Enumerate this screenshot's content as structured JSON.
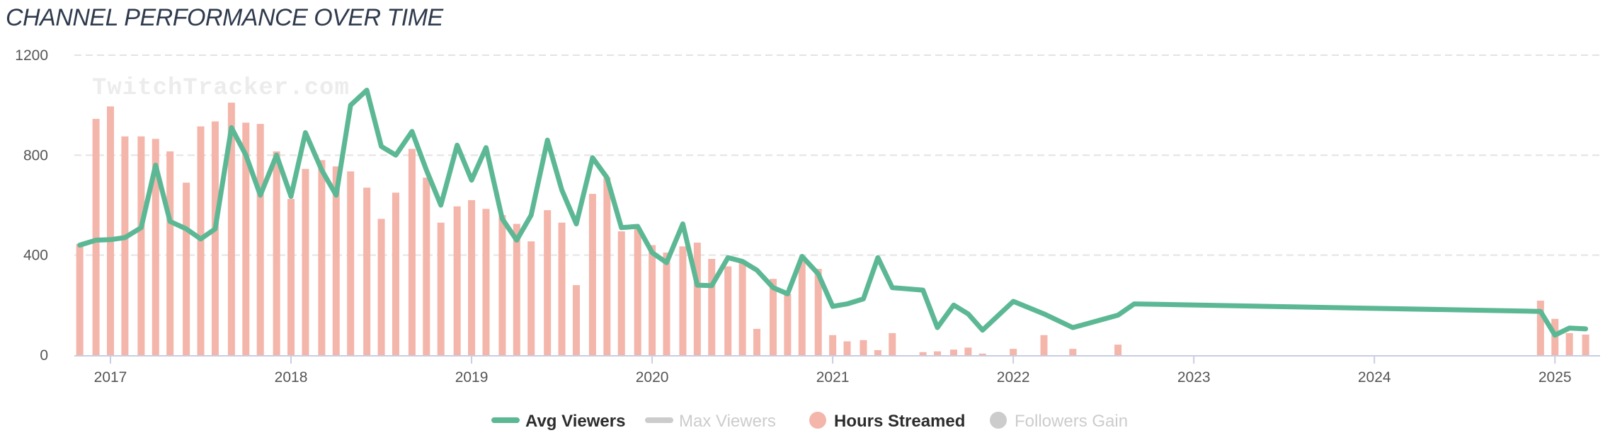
{
  "chart_data": {
    "type": "bar+line",
    "title": "CHANNEL PERFORMANCE OVER TIME",
    "watermark": "TwitchTracker.com",
    "ylim": [
      0,
      1200
    ],
    "yticks": [
      0,
      400,
      800,
      1200
    ],
    "ytick_labels": [
      "0",
      "400",
      "800",
      "1200"
    ],
    "x_start": 2016.8,
    "x_end": 2025.25,
    "xticks": [
      2017,
      2018,
      2019,
      2020,
      2021,
      2022,
      2023,
      2024,
      2025
    ],
    "xtick_labels": [
      "2017",
      "2018",
      "2019",
      "2020",
      "2021",
      "2022",
      "2023",
      "2024",
      "2025"
    ],
    "grid": true,
    "legend": [
      {
        "label": "Avg Viewers",
        "shape": "line",
        "color": "#5cb894",
        "active": true
      },
      {
        "label": "Max Viewers",
        "shape": "line",
        "color": "#cccccc",
        "active": false
      },
      {
        "label": "Hours Streamed",
        "shape": "circle",
        "color": "#f4b5aa",
        "active": true
      },
      {
        "label": "Followers Gain",
        "shape": "circle",
        "color": "#cccccc",
        "active": false
      }
    ],
    "colors": {
      "avg_viewers": "#5cb894",
      "hours_streamed": "#f4b5aa"
    },
    "series": [
      {
        "name": "Hours Streamed",
        "type": "bar",
        "x": [
          2016.83,
          2016.92,
          2017.0,
          2017.08,
          2017.17,
          2017.25,
          2017.33,
          2017.42,
          2017.5,
          2017.58,
          2017.67,
          2017.75,
          2017.83,
          2017.92,
          2018.0,
          2018.08,
          2018.17,
          2018.25,
          2018.33,
          2018.42,
          2018.5,
          2018.58,
          2018.67,
          2018.75,
          2018.83,
          2018.92,
          2019.0,
          2019.08,
          2019.17,
          2019.25,
          2019.33,
          2019.42,
          2019.5,
          2019.58,
          2019.67,
          2019.75,
          2019.83,
          2019.92,
          2020.0,
          2020.08,
          2020.17,
          2020.25,
          2020.33,
          2020.42,
          2020.5,
          2020.58,
          2020.67,
          2020.75,
          2020.83,
          2020.92,
          2021.0,
          2021.08,
          2021.17,
          2021.25,
          2021.33,
          2021.5,
          2021.58,
          2021.67,
          2021.75,
          2021.83,
          2022.0,
          2022.17,
          2022.33,
          2022.58,
          2024.92,
          2025.0,
          2025.08,
          2025.17
        ],
        "values": [
          445,
          945,
          995,
          875,
          875,
          865,
          815,
          690,
          915,
          935,
          1010,
          930,
          925,
          815,
          625,
          745,
          780,
          755,
          735,
          670,
          545,
          650,
          825,
          710,
          530,
          595,
          620,
          585,
          560,
          525,
          455,
          580,
          530,
          280,
          645,
          710,
          495,
          510,
          440,
          410,
          435,
          450,
          385,
          355,
          380,
          105,
          305,
          245,
          375,
          345,
          80,
          55,
          60,
          20,
          88,
          12,
          15,
          22,
          30,
          6,
          25,
          80,
          25,
          42,
          218,
          145,
          88,
          82
        ]
      },
      {
        "name": "Avg Viewers",
        "type": "line",
        "x": [
          2016.83,
          2016.92,
          2017.0,
          2017.08,
          2017.17,
          2017.25,
          2017.33,
          2017.42,
          2017.5,
          2017.58,
          2017.67,
          2017.75,
          2017.83,
          2017.92,
          2018.0,
          2018.08,
          2018.17,
          2018.25,
          2018.33,
          2018.42,
          2018.5,
          2018.58,
          2018.67,
          2018.75,
          2018.83,
          2018.92,
          2019.0,
          2019.08,
          2019.17,
          2019.25,
          2019.33,
          2019.42,
          2019.5,
          2019.58,
          2019.67,
          2019.75,
          2019.83,
          2019.92,
          2020.0,
          2020.08,
          2020.17,
          2020.25,
          2020.33,
          2020.42,
          2020.5,
          2020.58,
          2020.67,
          2020.75,
          2020.83,
          2020.92,
          2021.0,
          2021.08,
          2021.17,
          2021.25,
          2021.33,
          2021.5,
          2021.58,
          2021.67,
          2021.75,
          2021.83,
          2022.0,
          2022.17,
          2022.33,
          2022.58,
          2022.67,
          2024.92,
          2025.0,
          2025.08,
          2025.17
        ],
        "values": [
          440,
          460,
          462,
          470,
          510,
          760,
          535,
          505,
          465,
          505,
          910,
          800,
          640,
          800,
          635,
          890,
          740,
          640,
          1000,
          1060,
          835,
          800,
          895,
          740,
          600,
          840,
          700,
          830,
          545,
          460,
          560,
          860,
          660,
          525,
          790,
          710,
          510,
          515,
          410,
          370,
          525,
          280,
          278,
          390,
          375,
          340,
          270,
          245,
          395,
          325,
          195,
          205,
          225,
          390,
          270,
          260,
          110,
          200,
          165,
          100,
          215,
          165,
          110,
          160,
          205,
          175,
          80,
          108,
          105
        ]
      }
    ]
  }
}
